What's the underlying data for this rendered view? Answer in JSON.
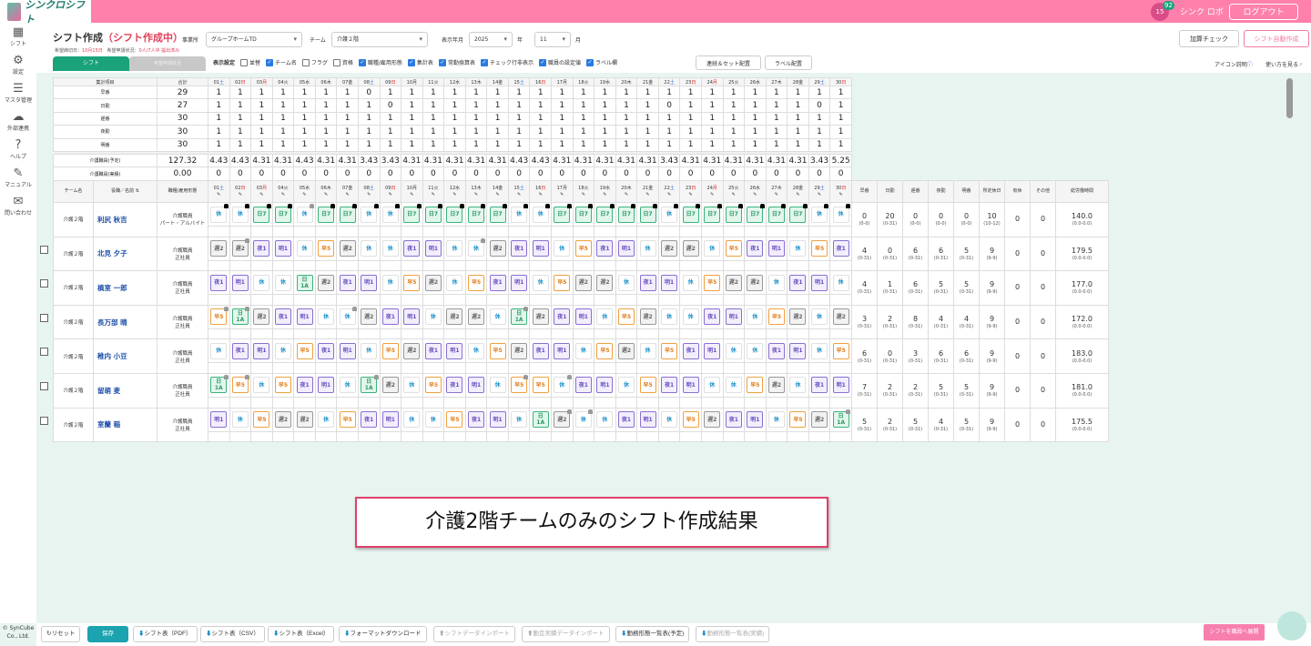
{
  "header": {
    "app_name": "シンクロシフト",
    "notification_count": "92",
    "calendar_day": "15",
    "user_name": "シンク ロボ",
    "logout": "ログアウト",
    "accent": "#ff80ab"
  },
  "sidebar": {
    "items": [
      {
        "label": "シフト",
        "icon": "calendar-icon"
      },
      {
        "label": "設定",
        "icon": "gear-icon"
      },
      {
        "label": "マスタ管理",
        "icon": "database-icon"
      },
      {
        "label": "外部連携",
        "icon": "cloud-icon"
      },
      {
        "label": "ヘルプ",
        "icon": "help-icon"
      },
      {
        "label": "マニュアル",
        "icon": "edit-icon"
      },
      {
        "label": "問い合わせ",
        "icon": "mail-icon"
      }
    ]
  },
  "page": {
    "title": "シフト作成",
    "status": "（シフト作成中）",
    "office_label": "事業所",
    "office": "グループホームTD",
    "team_label": "チーム",
    "team": "介護２階",
    "period_label": "表示年月",
    "year": "2025",
    "year_unit": "年",
    "month": "11",
    "month_unit": "月",
    "addon_check": "加算チェック",
    "auto_create": "シフト自動作成",
    "deadline_label": "希望締切日：",
    "deadline": "10月15日",
    "request_label": "希望申請状況：",
    "request_status": "0人/7人中 提出済み",
    "tab_shift": "シフト",
    "tab_request": "希望申請状況",
    "display_settings": "表示設定",
    "options": [
      {
        "label": "並替",
        "on": false
      },
      {
        "label": "チーム名",
        "on": true
      },
      {
        "label": "フラグ",
        "on": false
      },
      {
        "label": "資格",
        "on": false
      },
      {
        "label": "職種/雇用形態",
        "on": true
      },
      {
        "label": "集計表",
        "on": true
      },
      {
        "label": "常勤換算表",
        "on": true
      },
      {
        "label": "チェック行非表示",
        "on": true
      },
      {
        "label": "職員の設定値",
        "on": true
      },
      {
        "label": "ラベル欄",
        "on": true
      }
    ],
    "btn_sequence": "連続＆セット配置",
    "btn_label": "ラベル配置",
    "icon_help": "アイコン説明",
    "how_to": "使い方を見る"
  },
  "days": [
    {
      "d": "01",
      "w": "土",
      "k": "sat"
    },
    {
      "d": "02",
      "w": "日",
      "k": "sun"
    },
    {
      "d": "03",
      "w": "月",
      "k": "sun"
    },
    {
      "d": "04",
      "w": "火",
      "k": ""
    },
    {
      "d": "05",
      "w": "水",
      "k": ""
    },
    {
      "d": "06",
      "w": "木",
      "k": ""
    },
    {
      "d": "07",
      "w": "金",
      "k": ""
    },
    {
      "d": "08",
      "w": "土",
      "k": "sat"
    },
    {
      "d": "09",
      "w": "日",
      "k": "sun"
    },
    {
      "d": "10",
      "w": "月",
      "k": ""
    },
    {
      "d": "11",
      "w": "火",
      "k": ""
    },
    {
      "d": "12",
      "w": "水",
      "k": ""
    },
    {
      "d": "13",
      "w": "木",
      "k": ""
    },
    {
      "d": "14",
      "w": "金",
      "k": ""
    },
    {
      "d": "15",
      "w": "土",
      "k": "sat"
    },
    {
      "d": "16",
      "w": "日",
      "k": "sun"
    },
    {
      "d": "17",
      "w": "月",
      "k": ""
    },
    {
      "d": "18",
      "w": "火",
      "k": ""
    },
    {
      "d": "19",
      "w": "水",
      "k": ""
    },
    {
      "d": "20",
      "w": "木",
      "k": ""
    },
    {
      "d": "21",
      "w": "金",
      "k": ""
    },
    {
      "d": "22",
      "w": "土",
      "k": "sat"
    },
    {
      "d": "23",
      "w": "日",
      "k": "sun"
    },
    {
      "d": "24",
      "w": "月",
      "k": "sun"
    },
    {
      "d": "25",
      "w": "火",
      "k": ""
    },
    {
      "d": "26",
      "w": "水",
      "k": ""
    },
    {
      "d": "27",
      "w": "木",
      "k": ""
    },
    {
      "d": "28",
      "w": "金",
      "k": ""
    },
    {
      "d": "29",
      "w": "土",
      "k": "sat"
    },
    {
      "d": "30",
      "w": "日",
      "k": "sun"
    }
  ],
  "summary": {
    "header_item": "集計項目",
    "header_total": "合計",
    "rows": [
      {
        "label": "早番",
        "total": "29",
        "values": [
          1,
          1,
          1,
          1,
          1,
          1,
          1,
          0,
          1,
          1,
          1,
          1,
          1,
          1,
          1,
          1,
          1,
          1,
          1,
          1,
          1,
          1,
          1,
          1,
          1,
          1,
          1,
          1,
          1,
          1
        ]
      },
      {
        "label": "日勤",
        "total": "27",
        "values": [
          1,
          1,
          1,
          1,
          1,
          1,
          1,
          1,
          0,
          1,
          1,
          1,
          1,
          1,
          1,
          1,
          1,
          1,
          1,
          1,
          1,
          0,
          1,
          1,
          1,
          1,
          1,
          1,
          0,
          1
        ]
      },
      {
        "label": "遅番",
        "total": "30",
        "values": [
          1,
          1,
          1,
          1,
          1,
          1,
          1,
          1,
          1,
          1,
          1,
          1,
          1,
          1,
          1,
          1,
          1,
          1,
          1,
          1,
          1,
          1,
          1,
          1,
          1,
          1,
          1,
          1,
          1,
          1
        ]
      },
      {
        "label": "夜勤",
        "total": "30",
        "values": [
          1,
          1,
          1,
          1,
          1,
          1,
          1,
          1,
          1,
          1,
          1,
          1,
          1,
          1,
          1,
          1,
          1,
          1,
          1,
          1,
          1,
          1,
          1,
          1,
          1,
          1,
          1,
          1,
          1,
          1
        ]
      },
      {
        "label": "明番",
        "total": "30",
        "values": [
          1,
          1,
          1,
          1,
          1,
          1,
          1,
          1,
          1,
          1,
          1,
          1,
          1,
          1,
          1,
          1,
          1,
          1,
          1,
          1,
          1,
          1,
          1,
          1,
          1,
          1,
          1,
          1,
          1,
          1
        ]
      }
    ],
    "fte_rows": [
      {
        "label": "介護職員(予定)",
        "total": "127.32",
        "values": [
          "4.43",
          "4.43",
          "4.31",
          "4.31",
          "4.43",
          "4.31",
          "4.31",
          "3.43",
          "3.43",
          "4.31",
          "4.31",
          "4.31",
          "4.31",
          "4.31",
          "4.43",
          "4.43",
          "4.31",
          "4.31",
          "4.31",
          "4.31",
          "4.31",
          "3.43",
          "4.31",
          "4.31",
          "4.31",
          "4.31",
          "4.31",
          "4.31",
          "3.43",
          "5.25"
        ]
      },
      {
        "label": "介護職員(実績)",
        "total": "0.00",
        "values": [
          "0",
          "0",
          "0",
          "0",
          "0",
          "0",
          "0",
          "0",
          "0",
          "0",
          "0",
          "0",
          "0",
          "0",
          "0",
          "0",
          "0",
          "0",
          "0",
          "0",
          "0",
          "0",
          "0",
          "0",
          "0",
          "0",
          "0",
          "0",
          "0",
          "0"
        ]
      }
    ]
  },
  "staff_table": {
    "h_team": "チーム名",
    "h_name": "役職／名前",
    "h_job": "職種/雇用形態",
    "stat_headers": [
      "早番",
      "日勤",
      "遅番",
      "夜勤",
      "明番",
      "所定休日",
      "有休",
      "その他",
      "総労働時間"
    ],
    "staff": [
      {
        "team": "介護２階",
        "name": "利尻 秋吉",
        "job": "介護職員",
        "emp": "パート・アルバイト",
        "checkbox": false,
        "shifts": [
          "休",
          "休",
          "日7",
          "日7",
          "休",
          "日7",
          "日7",
          "休",
          "休",
          "日7",
          "日7",
          "日7",
          "日7",
          "日7",
          "休",
          "休",
          "日7",
          "日7",
          "日7",
          "日7",
          "日7",
          "休",
          "日7",
          "日7",
          "日7",
          "日7",
          "日7",
          "日7",
          "休",
          "休"
        ],
        "locks_black": [
          1,
          2,
          3,
          4,
          6,
          7,
          8,
          9,
          10,
          11,
          12,
          13,
          14,
          15,
          16,
          17,
          18,
          19,
          20,
          21,
          22,
          23,
          24,
          25,
          26,
          27,
          28,
          29,
          30
        ],
        "locks_gray": [
          5
        ],
        "stats": [
          [
            "0",
            "(0-0)"
          ],
          [
            "20",
            "(0-31)"
          ],
          [
            "0",
            "(0-0)"
          ],
          [
            "0",
            "(0-0)"
          ],
          [
            "0",
            "(0-0)"
          ],
          [
            "10",
            "(10-12)"
          ],
          [
            "0",
            ""
          ],
          [
            "0",
            ""
          ],
          [
            "140.0",
            "(0.0-0.0)"
          ]
        ]
      },
      {
        "team": "介護２階",
        "name": "北見 夕子",
        "job": "介護職員",
        "emp": "正社員",
        "checkbox": false,
        "shifts": [
          "遅2",
          "遅2",
          "夜1",
          "明1",
          "休",
          "早5",
          "遅2",
          "休",
          "休",
          "夜1",
          "明1",
          "休",
          "休",
          "遅2",
          "夜1",
          "明1",
          "休",
          "早5",
          "夜1",
          "明1",
          "休",
          "遅2",
          "遅2",
          "休",
          "早5",
          "夜1",
          "明1",
          "休",
          "早5",
          "夜1"
        ],
        "locks_black": [],
        "locks_gray": [
          2,
          13
        ],
        "stats": [
          [
            "4",
            "(0-31)"
          ],
          [
            "0",
            "(0-31)"
          ],
          [
            "6",
            "(0-31)"
          ],
          [
            "6",
            "(0-31)"
          ],
          [
            "5",
            "(0-31)"
          ],
          [
            "9",
            "(9-9)"
          ],
          [
            "0",
            ""
          ],
          [
            "0",
            ""
          ],
          [
            "179.5",
            "(0.0-0.0)"
          ]
        ]
      },
      {
        "team": "介護２階",
        "name": "槙室 一郎",
        "job": "介護職員",
        "emp": "正社員",
        "checkbox": false,
        "shifts": [
          "夜1",
          "明1",
          "休",
          "休",
          "日1A",
          "遅2",
          "夜1",
          "明1",
          "休",
          "早5",
          "遅2",
          "休",
          "早5",
          "夜1",
          "明1",
          "休",
          "早5",
          "遅2",
          "遅2",
          "休",
          "夜1",
          "明1",
          "休",
          "早5",
          "遅2",
          "遅2",
          "休",
          "夜1",
          "明1",
          "休"
        ],
        "locks_black": [],
        "locks_gray": [],
        "stats": [
          [
            "4",
            "(0-31)"
          ],
          [
            "1",
            "(0-31)"
          ],
          [
            "6",
            "(0-31)"
          ],
          [
            "5",
            "(0-31)"
          ],
          [
            "5",
            "(0-31)"
          ],
          [
            "9",
            "(9-9)"
          ],
          [
            "0",
            ""
          ],
          [
            "0",
            ""
          ],
          [
            "177.0",
            "(0.0-0.0)"
          ]
        ]
      },
      {
        "team": "介護２階",
        "name": "長万部 晴",
        "job": "介護職員",
        "emp": "正社員",
        "checkbox": false,
        "shifts": [
          "早5",
          "日1A",
          "遅2",
          "夜1",
          "明1",
          "休",
          "休",
          "遅2",
          "夜1",
          "明1",
          "休",
          "遅2",
          "遅2",
          "休",
          "日1A",
          "遅2",
          "夜1",
          "明1",
          "休",
          "早5",
          "遅2",
          "休",
          "休",
          "夜1",
          "明1",
          "休",
          "早5",
          "遅2",
          "休",
          "遅2"
        ],
        "locks_black": [],
        "locks_gray": [
          1,
          2,
          7,
          15
        ],
        "stats": [
          [
            "3",
            "(0-31)"
          ],
          [
            "2",
            "(0-31)"
          ],
          [
            "8",
            "(0-31)"
          ],
          [
            "4",
            "(0-31)"
          ],
          [
            "4",
            "(0-31)"
          ],
          [
            "9",
            "(9-9)"
          ],
          [
            "0",
            ""
          ],
          [
            "0",
            ""
          ],
          [
            "172.0",
            "(0.0-0.0)"
          ]
        ]
      },
      {
        "team": "介護２階",
        "name": "稚内 小豆",
        "job": "介護職員",
        "emp": "正社員",
        "checkbox": false,
        "shifts": [
          "休",
          "夜1",
          "明1",
          "休",
          "早5",
          "夜1",
          "明1",
          "休",
          "早5",
          "遅2",
          "夜1",
          "明1",
          "休",
          "早5",
          "遅2",
          "夜1",
          "明1",
          "休",
          "早5",
          "遅2",
          "休",
          "早5",
          "夜1",
          "明1",
          "休",
          "休",
          "夜1",
          "明1",
          "休",
          "早5"
        ],
        "locks_black": [],
        "locks_gray": [],
        "stats": [
          [
            "6",
            "(0-31)"
          ],
          [
            "0",
            "(0-31)"
          ],
          [
            "3",
            "(0-31)"
          ],
          [
            "6",
            "(0-31)"
          ],
          [
            "6",
            "(0-31)"
          ],
          [
            "9",
            "(9-9)"
          ],
          [
            "0",
            ""
          ],
          [
            "0",
            ""
          ],
          [
            "183.0",
            "(0.0-0.0)"
          ]
        ]
      },
      {
        "team": "介護２階",
        "name": "留萌 麦",
        "job": "介護職員",
        "emp": "正社員",
        "checkbox": false,
        "shifts": [
          "日1A",
          "早5",
          "休",
          "早5",
          "夜1",
          "明1",
          "休",
          "日1A",
          "遅2",
          "休",
          "早5",
          "夜1",
          "明1",
          "休",
          "早5",
          "早5",
          "休",
          "夜1",
          "明1",
          "休",
          "早5",
          "夜1",
          "明1",
          "休",
          "休",
          "早5",
          "遅2",
          "休",
          "夜1",
          "明1"
        ],
        "locks_black": [],
        "locks_gray": [
          1,
          2,
          8,
          15,
          17
        ],
        "stats": [
          [
            "7",
            "(0-31)"
          ],
          [
            "2",
            "(0-31)"
          ],
          [
            "2",
            "(0-31)"
          ],
          [
            "5",
            "(0-31)"
          ],
          [
            "5",
            "(0-31)"
          ],
          [
            "9",
            "(9-9)"
          ],
          [
            "0",
            ""
          ],
          [
            "0",
            ""
          ],
          [
            "181.0",
            "(0.0-0.0)"
          ]
        ]
      },
      {
        "team": "介護２階",
        "name": "室蘭 稲",
        "job": "介護職員",
        "emp": "正社員",
        "checkbox": false,
        "shifts": [
          "明1",
          "休",
          "早5",
          "遅2",
          "遅2",
          "休",
          "早5",
          "夜1",
          "明1",
          "休",
          "休",
          "早5",
          "夜1",
          "明1",
          "休",
          "日1A",
          "遅2",
          "休",
          "休",
          "夜1",
          "明1",
          "休",
          "早5",
          "遅2",
          "夜1",
          "明1",
          "休",
          "早5",
          "遅2",
          "日1A"
        ],
        "locks_black": [],
        "locks_gray": [
          17,
          18,
          30
        ],
        "stats": [
          [
            "5",
            "(0-31)"
          ],
          [
            "2",
            "(0-31)"
          ],
          [
            "5",
            "(0-31)"
          ],
          [
            "4",
            "(0-31)"
          ],
          [
            "5",
            "(0-31)"
          ],
          [
            "9",
            "(9-9)"
          ],
          [
            "0",
            ""
          ],
          [
            "0",
            ""
          ],
          [
            "175.5",
            "(0.0-0.0)"
          ]
        ]
      }
    ]
  },
  "callout": "介護2階チームのみのシフト作成結果",
  "footer": {
    "copyright": "© SynCube Co., Ltd.",
    "reset": "リセット",
    "save": "保存",
    "pdf": "シフト表（PDF）",
    "csv": "シフト表（CSV）",
    "excel": "シフト表（Excel）",
    "format_dl": "フォーマットダウンロード",
    "shift_import": "シフトデータインポート",
    "actual_import": "勤怠実績データインポート",
    "work_list_plan": "勤務形態一覧表(予定)",
    "work_list_actual": "勤務形態一覧表(実績)",
    "publish": "シフトを職員へ展開"
  }
}
